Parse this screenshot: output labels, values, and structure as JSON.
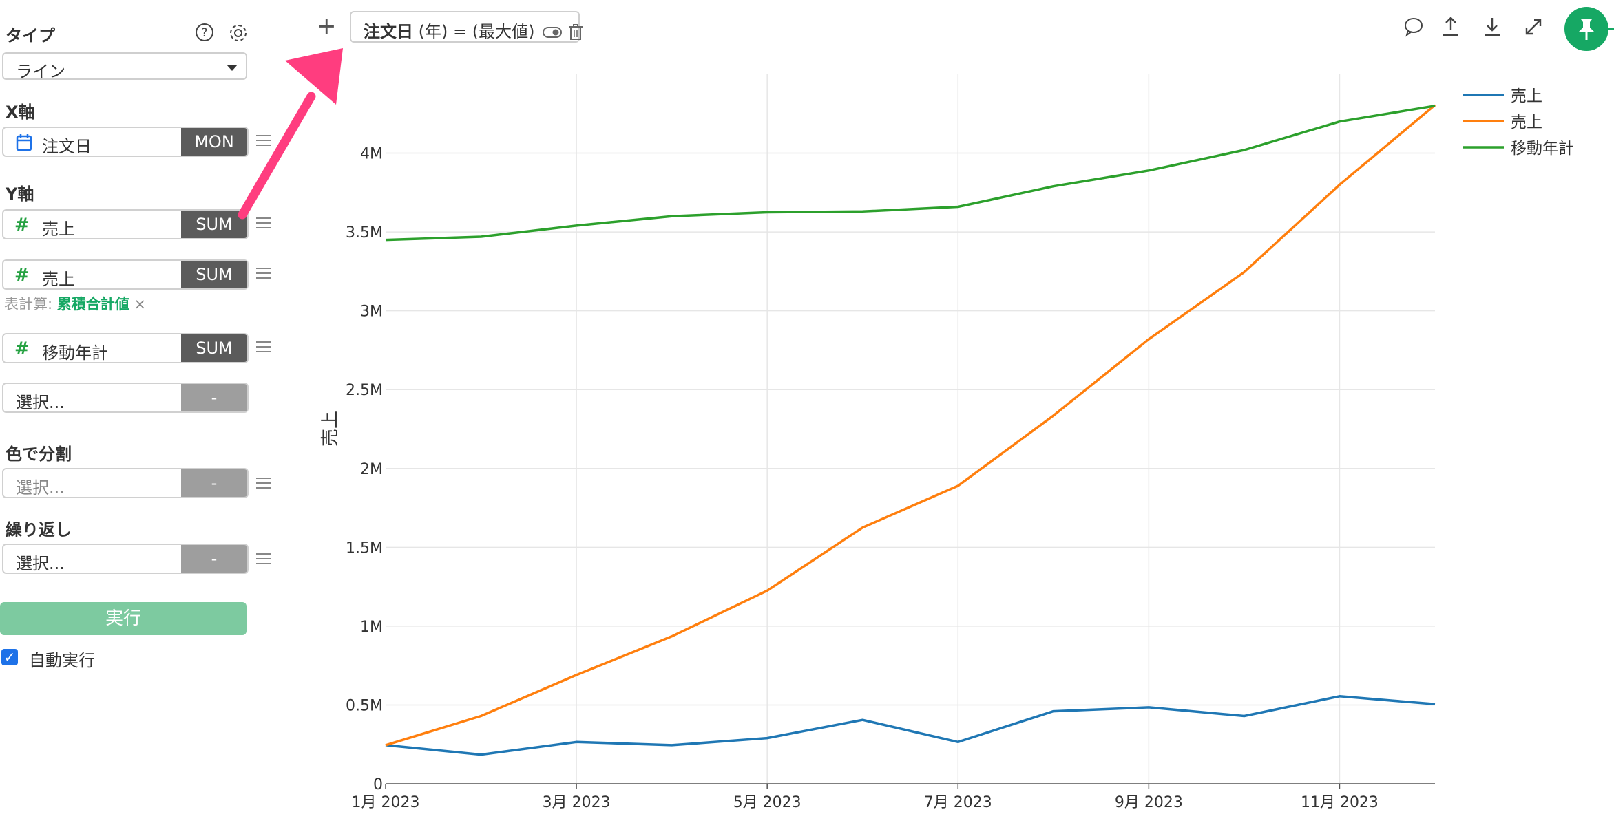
{
  "sidebar": {
    "type_label": "タイプ",
    "type_value": "ライン",
    "x_axis_label": "X軸",
    "x_field": {
      "name": "注文日",
      "agg": "MON"
    },
    "y_axis_label": "Y軸",
    "y_fields": [
      {
        "name": "売上",
        "agg": "SUM"
      },
      {
        "name": "売上",
        "agg": "SUM"
      },
      {
        "name": "移動年計",
        "agg": "SUM"
      }
    ],
    "calc_label": "表計算:",
    "calc_value": "累積合計値",
    "calc_remove": "×",
    "y_select_placeholder": "選択...",
    "dash": "-",
    "color_split_label": "色で分割",
    "color_split_placeholder": "選択...",
    "repeat_label": "繰り返し",
    "repeat_placeholder": "選択...",
    "run_button": "実行",
    "auto_run_label": "自動実行",
    "auto_run_checked": true
  },
  "toolbar": {
    "add_label": "+",
    "filter_field": "注文日",
    "filter_rest": "(年) = (最大値)"
  },
  "chart_data": {
    "type": "line",
    "ylabel": "売上",
    "x": [
      "1月 2023",
      "2月 2023",
      "3月 2023",
      "4月 2023",
      "5月 2023",
      "6月 2023",
      "7月 2023",
      "8月 2023",
      "9月 2023",
      "10月 2023",
      "11月 2023",
      "12月 2023"
    ],
    "x_tick_labels": [
      "1月 2023",
      "3月 2023",
      "5月 2023",
      "7月 2023",
      "9月 2023",
      "11月 2023"
    ],
    "ylim": [
      0,
      4500000
    ],
    "y_ticks": [
      0,
      500000,
      1000000,
      1500000,
      2000000,
      2500000,
      3000000,
      3500000,
      4000000
    ],
    "y_tick_labels": [
      "0",
      "0.5M",
      "1M",
      "1.5M",
      "2M",
      "2.5M",
      "3M",
      "3.5M",
      "4M"
    ],
    "grid": true,
    "legend_position": "top-right",
    "series": [
      {
        "name": "売上",
        "color": "#1f77b4",
        "values": [
          245000,
          185000,
          265000,
          245000,
          290000,
          405000,
          265000,
          460000,
          485000,
          430000,
          555000,
          505000
        ]
      },
      {
        "name": "売上",
        "color": "#ff7f0e",
        "values": [
          245000,
          430000,
          690000,
          935000,
          1225000,
          1625000,
          1890000,
          2335000,
          2820000,
          3245000,
          3800000,
          4305000
        ]
      },
      {
        "name": "移動年計",
        "color": "#2ca02c",
        "values": [
          3450000,
          3470000,
          3540000,
          3600000,
          3625000,
          3630000,
          3660000,
          3790000,
          3890000,
          4020000,
          4200000,
          4300000
        ]
      }
    ]
  }
}
